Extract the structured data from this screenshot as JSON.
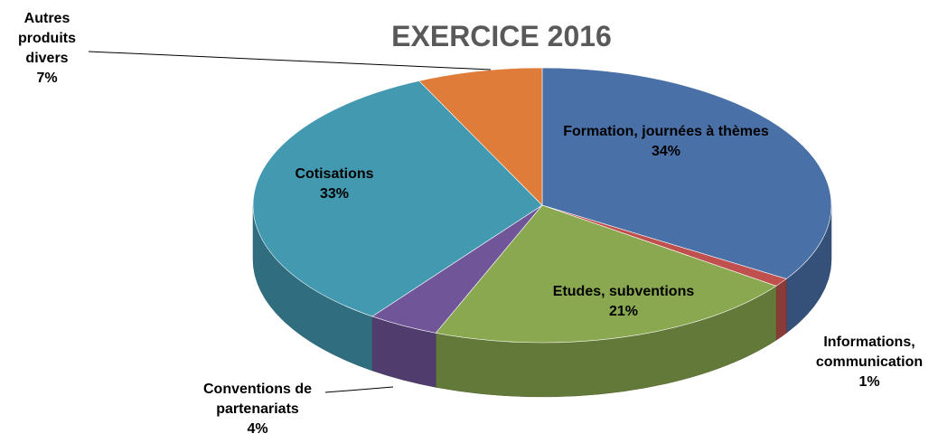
{
  "chart_data": {
    "type": "pie3d",
    "title": "EXERCICE 2016",
    "categories": [
      "Formation, journées à thèmes",
      "Informations, communication",
      "Etudes, subventions",
      "Conventions de partenariats",
      "Cotisations",
      "Autres produits divers"
    ],
    "values": [
      34,
      1,
      21,
      4,
      33,
      7
    ],
    "value_labels": [
      "34%",
      "1%",
      "21%",
      "4%",
      "33%",
      "7%"
    ],
    "colors": [
      "#4a70a8",
      "#c0504d",
      "#8aa84f",
      "#705598",
      "#4299b0",
      "#e07c3a"
    ]
  }
}
